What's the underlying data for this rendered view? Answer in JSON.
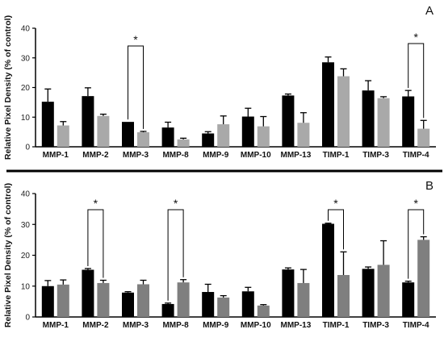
{
  "colors": {
    "series_a_dark": "#000000",
    "series_a_light": "#a9a9a9",
    "series_b_dark": "#000000",
    "series_b_light": "#7f7f7f",
    "divider": "#000000"
  },
  "chart_data": [
    {
      "type": "bar",
      "panel_label": "A",
      "ylabel": "Relative Pixel Density (% of control)",
      "ylim": [
        0,
        40
      ],
      "yticks": [
        "0",
        "10",
        "20",
        "30",
        "40"
      ],
      "categories": [
        "MMP-1",
        "MMP-2",
        "MMP-3",
        "MMP-8",
        "MMP-9",
        "MMP-10",
        "MMP-13",
        "TIMP-1",
        "TIMP-3",
        "TIMP-4"
      ],
      "series": [
        {
          "values": [
            15.2,
            17.1,
            8.4,
            6.5,
            4.5,
            10.2,
            17.3,
            28.5,
            19.0,
            17.0
          ],
          "errors": [
            4.3,
            2.8,
            0,
            1.8,
            0.6,
            2.8,
            0.5,
            1.8,
            3.3,
            2.0
          ]
        },
        {
          "values": [
            7.2,
            10.4,
            4.9,
            2.5,
            7.6,
            6.9,
            8.1,
            23.8,
            16.4,
            6.1
          ],
          "errors": [
            1.3,
            0.6,
            0.3,
            0.4,
            2.8,
            3.3,
            3.4,
            2.5,
            0.5,
            2.8
          ]
        }
      ],
      "significance": [
        {
          "category": "MMP-3",
          "label": "*"
        },
        {
          "category": "TIMP-4",
          "label": "*"
        }
      ],
      "grid": false
    },
    {
      "type": "bar",
      "panel_label": "B",
      "ylabel": "Relative Pixel Density (% of control)",
      "ylim": [
        0,
        40
      ],
      "yticks": [
        "0",
        "10",
        "20",
        "30",
        "40"
      ],
      "categories": [
        "MMP-1",
        "MMP-2",
        "MMP-3",
        "MMP-8",
        "MMP-9",
        "MMP-10",
        "MMP-13",
        "TIMP-1",
        "TIMP-3",
        "TIMP-4"
      ],
      "series": [
        {
          "values": [
            10.0,
            15.3,
            7.9,
            4.2,
            8.1,
            8.3,
            15.4,
            30.2,
            15.6,
            11.2
          ],
          "errors": [
            1.8,
            0.4,
            0.3,
            0.3,
            2.5,
            1.3,
            0.5,
            0.2,
            0.6,
            0.4
          ]
        },
        {
          "values": [
            10.5,
            11.0,
            10.6,
            11.2,
            6.3,
            3.7,
            11.0,
            13.6,
            16.9,
            25.0
          ],
          "errors": [
            1.5,
            0.9,
            1.3,
            0.9,
            0.6,
            0.3,
            4.4,
            7.5,
            7.8,
            1.0
          ]
        }
      ],
      "significance": [
        {
          "category": "MMP-2",
          "label": "*"
        },
        {
          "category": "MMP-8",
          "label": "*"
        },
        {
          "category": "TIMP-1",
          "label": "*"
        },
        {
          "category": "TIMP-4",
          "label": "*"
        }
      ],
      "grid": false
    }
  ]
}
